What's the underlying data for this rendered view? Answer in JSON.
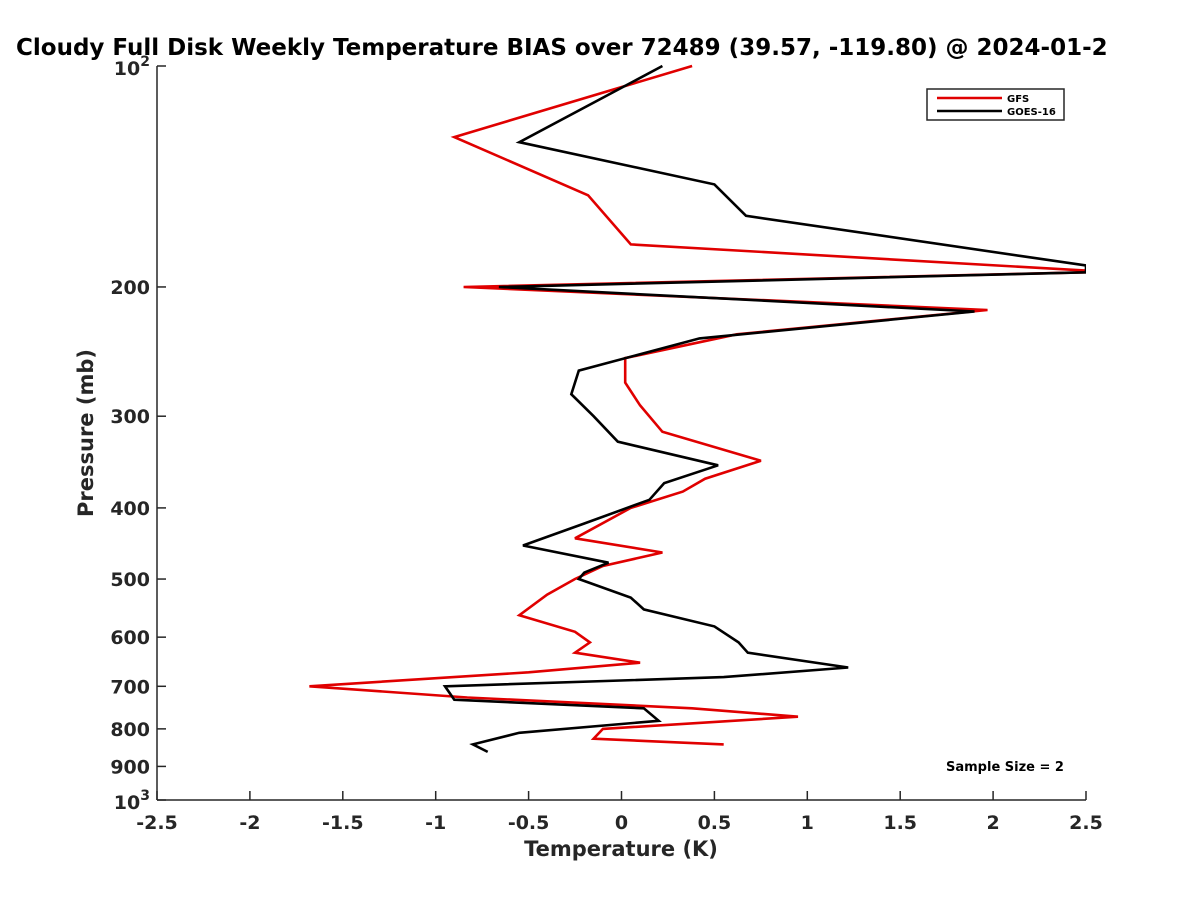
{
  "chart_data": {
    "type": "line",
    "title": "Cloudy Full Disk Weekly Temperature BIAS over 72489 (39.57, -119.80) @ 2024-01-2",
    "xlabel": "Temperature (K)",
    "ylabel": "Pressure (mb)",
    "xlim": [
      -2.5,
      2.5
    ],
    "ylim": [
      100,
      1000
    ],
    "yscale": "log",
    "y_reversed": true,
    "grid": false,
    "legend_position": "top-right",
    "x_ticks": [
      {
        "value": -2.5,
        "label": "-2.5"
      },
      {
        "value": -2,
        "label": "-2"
      },
      {
        "value": -1.5,
        "label": "-1.5"
      },
      {
        "value": -1,
        "label": "-1"
      },
      {
        "value": -0.5,
        "label": "-0.5"
      },
      {
        "value": 0,
        "label": "0"
      },
      {
        "value": 0.5,
        "label": "0.5"
      },
      {
        "value": 1,
        "label": "1"
      },
      {
        "value": 1.5,
        "label": "1.5"
      },
      {
        "value": 2,
        "label": "2"
      },
      {
        "value": 2.5,
        "label": "2.5"
      }
    ],
    "y_ticks": [
      {
        "value": 200,
        "label": "200"
      },
      {
        "value": 300,
        "label": "300"
      },
      {
        "value": 400,
        "label": "400"
      },
      {
        "value": 500,
        "label": "500"
      },
      {
        "value": 600,
        "label": "600"
      },
      {
        "value": 700,
        "label": "700"
      },
      {
        "value": 800,
        "label": "800"
      },
      {
        "value": 900,
        "label": "900"
      }
    ],
    "y_ticks_power": [
      {
        "value": 100,
        "base": "10",
        "exp": "2"
      },
      {
        "value": 1000,
        "base": "10",
        "exp": "3"
      }
    ],
    "series": [
      {
        "name": "GFS",
        "color": "#e00000",
        "points": [
          [
            0.38,
            100
          ],
          [
            -0.9,
            125
          ],
          [
            -0.18,
            150
          ],
          [
            0.05,
            175
          ],
          [
            2.5,
            190
          ],
          [
            2.5,
            191
          ],
          [
            -0.85,
            200
          ],
          [
            1.97,
            215
          ],
          [
            0.62,
            232
          ],
          [
            0.02,
            250
          ],
          [
            0.02,
            270
          ],
          [
            0.1,
            290
          ],
          [
            0.22,
            315
          ],
          [
            0.75,
            345
          ],
          [
            0.45,
            365
          ],
          [
            0.33,
            380
          ],
          [
            0.05,
            400
          ],
          [
            -0.25,
            440
          ],
          [
            0.22,
            460
          ],
          [
            -0.1,
            480
          ],
          [
            -0.25,
            500
          ],
          [
            -0.4,
            525
          ],
          [
            -0.55,
            560
          ],
          [
            -0.25,
            590
          ],
          [
            -0.17,
            610
          ],
          [
            -0.25,
            630
          ],
          [
            0.1,
            650
          ],
          [
            -0.5,
            670
          ],
          [
            -1.68,
            700
          ],
          [
            -0.83,
            725
          ],
          [
            0.38,
            750
          ],
          [
            0.95,
            770
          ],
          [
            -0.1,
            800
          ],
          [
            -0.15,
            825
          ],
          [
            0.55,
            840
          ]
        ]
      },
      {
        "name": "GOES-16",
        "color": "#000000",
        "points": [
          [
            0.22,
            100
          ],
          [
            -0.55,
            127
          ],
          [
            0.5,
            145
          ],
          [
            0.67,
            160
          ],
          [
            2.5,
            187
          ],
          [
            2.5,
            191
          ],
          [
            -0.66,
            200
          ],
          [
            1.9,
            216
          ],
          [
            0.42,
            235
          ],
          [
            -0.23,
            260
          ],
          [
            -0.27,
            280
          ],
          [
            -0.15,
            300
          ],
          [
            -0.02,
            325
          ],
          [
            0.52,
            350
          ],
          [
            0.23,
            370
          ],
          [
            0.15,
            390
          ],
          [
            -0.2,
            420
          ],
          [
            -0.53,
            450
          ],
          [
            -0.07,
            475
          ],
          [
            -0.2,
            490
          ],
          [
            -0.23,
            500
          ],
          [
            0.05,
            530
          ],
          [
            0.12,
            550
          ],
          [
            0.5,
            580
          ],
          [
            0.63,
            610
          ],
          [
            0.68,
            630
          ],
          [
            1.22,
            660
          ],
          [
            0.55,
            680
          ],
          [
            -0.95,
            700
          ],
          [
            -0.9,
            730
          ],
          [
            0.12,
            750
          ],
          [
            0.2,
            780
          ],
          [
            -0.55,
            810
          ],
          [
            -0.8,
            840
          ],
          [
            -0.72,
            860
          ]
        ]
      }
    ],
    "annotations": [
      "Sample Size = 2"
    ]
  }
}
